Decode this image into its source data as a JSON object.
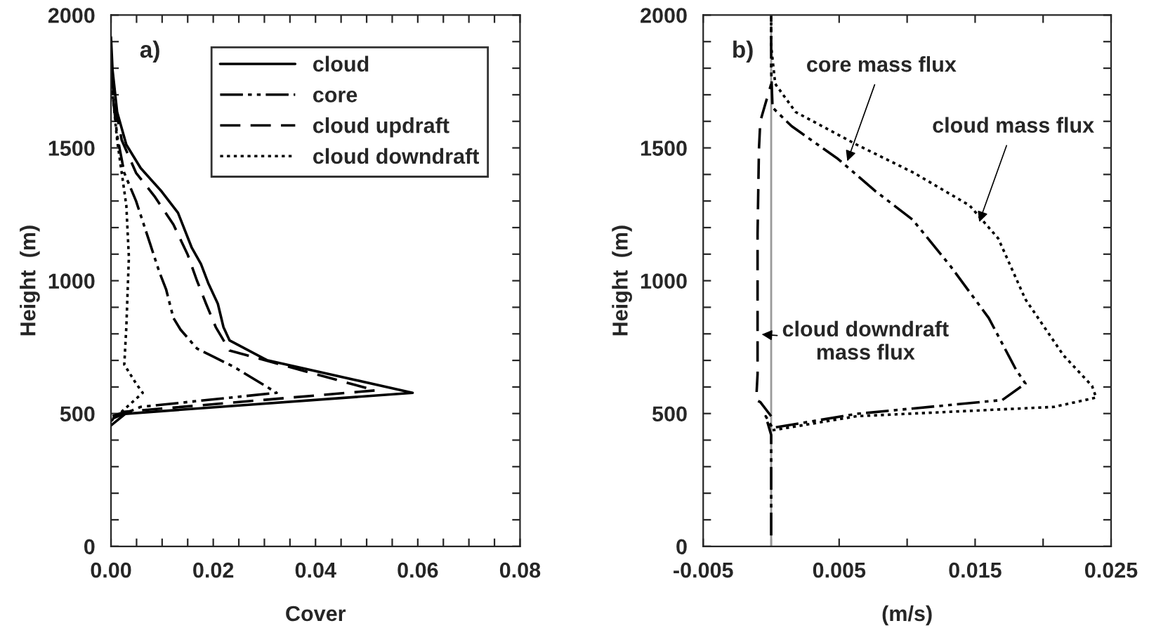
{
  "chart_data": [
    {
      "type": "line",
      "xlabel": "Cover",
      "ylabel": "Height  (m)",
      "xlim": [
        0,
        0.08
      ],
      "ylim": [
        0,
        2000
      ],
      "xticks": [
        {
          "value": 0,
          "label": "0.00"
        },
        {
          "value": 0.005,
          "label": null
        },
        {
          "value": 0.01,
          "label": null
        },
        {
          "value": 0.015,
          "label": null
        },
        {
          "value": 0.02,
          "label": "0.02"
        },
        {
          "value": 0.025,
          "label": null
        },
        {
          "value": 0.03,
          "label": null
        },
        {
          "value": 0.035,
          "label": null
        },
        {
          "value": 0.04,
          "label": "0.04"
        },
        {
          "value": 0.045,
          "label": null
        },
        {
          "value": 0.05,
          "label": null
        },
        {
          "value": 0.055,
          "label": null
        },
        {
          "value": 0.06,
          "label": "0.06"
        },
        {
          "value": 0.065,
          "label": null
        },
        {
          "value": 0.07,
          "label": null
        },
        {
          "value": 0.075,
          "label": null
        },
        {
          "value": 0.08,
          "label": "0.08"
        }
      ],
      "yticks": [
        0,
        {
          "value": 100,
          "label": null
        },
        {
          "value": 200,
          "label": null
        },
        {
          "value": 300,
          "label": null
        },
        {
          "value": 400,
          "label": null
        },
        500,
        {
          "value": 600,
          "label": null
        },
        {
          "value": 700,
          "label": null
        },
        {
          "value": 800,
          "label": null
        },
        {
          "value": 900,
          "label": null
        },
        1000,
        {
          "value": 1100,
          "label": null
        },
        {
          "value": 1200,
          "label": null
        },
        {
          "value": 1300,
          "label": null
        },
        {
          "value": 1400,
          "label": null
        },
        1500,
        {
          "value": 1600,
          "label": null
        },
        {
          "value": 1700,
          "label": null
        },
        {
          "value": 1800,
          "label": null
        },
        {
          "value": 1900,
          "label": null
        },
        2000
      ],
      "legend": "top right",
      "annotations": [
        "a)"
      ],
      "series": [
        {
          "name": "cloud",
          "color": "#000000",
          "line_style": "solid",
          "x": [
            0,
            0.0028,
            0.059,
            0.0305,
            0.0232,
            0.022,
            0.0209,
            0.019,
            0.0176,
            0.0158,
            0.0131,
            0.0099,
            0.0058,
            0.003,
            0.0012,
            0.0003,
            0
          ],
          "values": [
            455,
            499,
            578,
            701,
            775,
            825,
            913,
            992,
            1063,
            1124,
            1256,
            1336,
            1424,
            1512,
            1635,
            1794,
            1917
          ]
        },
        {
          "name": "core",
          "color": "#000000",
          "line_style": "dashdot",
          "x": [
            0.0003,
            0.0058,
            0.0324,
            0.0241,
            0.0168,
            0.0136,
            0.0122,
            0.0108,
            0.0094,
            0.0076,
            0.0049,
            0.0026,
            0.0012,
            0.0003,
            0
          ],
          "values": [
            481,
            525,
            578,
            675,
            745,
            816,
            860,
            966,
            1036,
            1142,
            1300,
            1406,
            1547,
            1706,
            1882
          ]
        },
        {
          "name": "cloud updraft",
          "color": "#000000",
          "line_style": "dashed",
          "x": [
            0.0003,
            0.0028,
            0.0517,
            0.0232,
            0.0205,
            0.0186,
            0.0168,
            0.015,
            0.0122,
            0.0085,
            0.0049,
            0.0021,
            0.0007,
            0
          ],
          "values": [
            490,
            507,
            587,
            737,
            825,
            913,
            1001,
            1098,
            1212,
            1318,
            1406,
            1529,
            1670,
            1794
          ]
        },
        {
          "name": "cloud downdraft",
          "color": "#000000",
          "line_style": "dotted",
          "x": [
            0,
            0.0021,
            0.0062,
            0.0049,
            0.0026,
            0.003,
            0.0035,
            0.003,
            0.0021,
            0.0012,
            0.0003
          ],
          "values": [
            472,
            507,
            578,
            613,
            684,
            825,
            1089,
            1283,
            1406,
            1529,
            1706
          ]
        }
      ]
    },
    {
      "type": "line",
      "xlabel": "(m/s)",
      "ylabel": "Height  (m)",
      "xlim": [
        -0.005,
        0.025
      ],
      "ylim": [
        0,
        2000
      ],
      "xticks": [
        {
          "value": -0.005,
          "label": "-0.005"
        },
        {
          "value": 0,
          "label": null
        },
        {
          "value": 0.005,
          "label": "0.005"
        },
        {
          "value": 0.01,
          "label": null
        },
        {
          "value": 0.015,
          "label": "0.015"
        },
        {
          "value": 0.02,
          "label": null
        },
        {
          "value": 0.025,
          "label": "0.025"
        }
      ],
      "yticks": [
        0,
        {
          "value": 100,
          "label": null
        },
        {
          "value": 200,
          "label": null
        },
        {
          "value": 300,
          "label": null
        },
        {
          "value": 400,
          "label": null
        },
        500,
        {
          "value": 600,
          "label": null
        },
        {
          "value": 700,
          "label": null
        },
        {
          "value": 800,
          "label": null
        },
        {
          "value": 900,
          "label": null
        },
        1000,
        {
          "value": 1100,
          "label": null
        },
        {
          "value": 1200,
          "label": null
        },
        {
          "value": 1300,
          "label": null
        },
        {
          "value": 1400,
          "label": null
        },
        1500,
        {
          "value": 1600,
          "label": null
        },
        {
          "value": 1700,
          "label": null
        },
        {
          "value": 1800,
          "label": null
        },
        {
          "value": 1900,
          "label": null
        },
        2000
      ],
      "ref_lines": [
        {
          "axis": "x",
          "value": 0,
          "color": "#999999",
          "line_style": "solid"
        }
      ],
      "annotations": [
        "b)",
        {
          "text": "core mass flux",
          "x": 0.0056,
          "y": 1450
        },
        {
          "text": "cloud mass flux",
          "x": 0.0153,
          "y": 1221
        },
        {
          "text": "cloud downdraft\nmass flux",
          "x": -0.0007,
          "y": 798
        }
      ],
      "series": [
        {
          "color": "#000000",
          "line_style": "dotted",
          "x": [
            0.0001,
            0.0063,
            0.0208,
            0.0239,
            0.0236,
            0.0215,
            0.0187,
            0.0167,
            0.0146,
            0.0105,
            0.0063,
            0.0018,
            0.0003,
            0,
            0
          ],
          "values": [
            437,
            490,
            525,
            560,
            604,
            719,
            930,
            1159,
            1283,
            1406,
            1512,
            1635,
            1741,
            1882,
            2000
          ]
        },
        {
          "color": "#000000",
          "line_style": "dashdot",
          "x": [
            0,
            0,
            -0.0004,
            0.0001,
            0.0063,
            0.017,
            0.0187,
            0.018,
            0.016,
            0.0132,
            0.0104,
            0.0077,
            0.0049,
            0.0015,
            0.0001,
            0,
            0
          ],
          "values": [
            41,
            419,
            490,
            446,
            499,
            551,
            613,
            666,
            860,
            1054,
            1230,
            1336,
            1459,
            1582,
            1652,
            1794,
            2000
          ]
        },
        {
          "color": "#000000",
          "line_style": "dashed",
          "x": [
            0,
            -0.0008,
            -0.0011,
            -0.001,
            -0.001,
            -0.0009,
            -0.0008,
            0
          ],
          "values": [
            490,
            543,
            551,
            648,
            1177,
            1494,
            1600,
            1741
          ]
        }
      ]
    }
  ]
}
